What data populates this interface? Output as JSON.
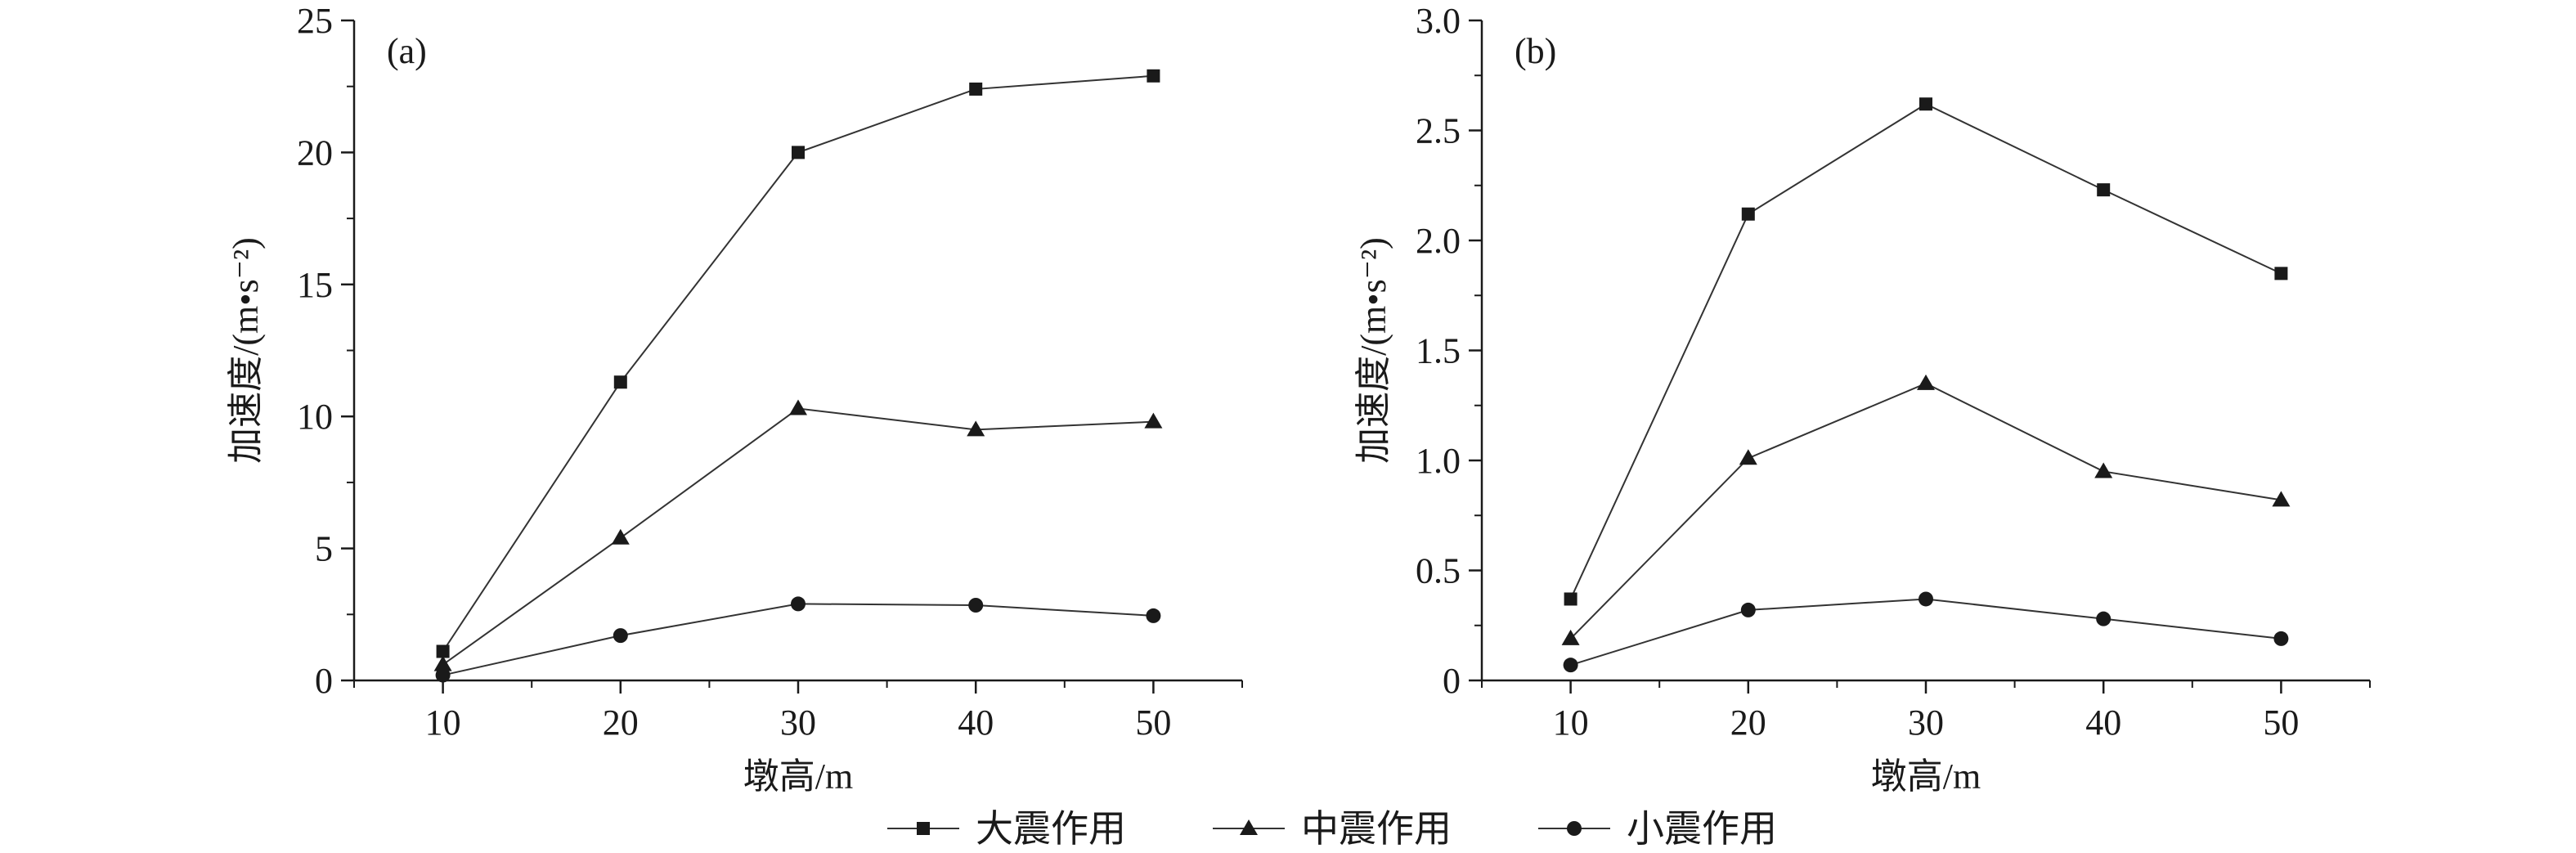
{
  "chart_data": [
    {
      "type": "line",
      "panel_label": "(a)",
      "xlabel": "墩高/m",
      "ylabel": "加速度/(m•s⁻²)",
      "x": [
        10,
        20,
        30,
        40,
        50
      ],
      "xticks": [
        "10",
        "20",
        "30",
        "40",
        "50"
      ],
      "xlim": [
        5,
        55
      ],
      "ylim": [
        0,
        25
      ],
      "yticks": [
        "0",
        "5",
        "10",
        "15",
        "20",
        "25"
      ],
      "grid": false,
      "series": [
        {
          "name": "大震作用",
          "marker": "square",
          "values": [
            1.1,
            11.3,
            20.0,
            22.4,
            22.9
          ]
        },
        {
          "name": "中震作用",
          "marker": "triangle",
          "values": [
            0.6,
            5.4,
            10.3,
            9.5,
            9.8
          ]
        },
        {
          "name": "小震作用",
          "marker": "circle",
          "values": [
            0.2,
            1.7,
            2.9,
            2.85,
            2.45
          ]
        }
      ]
    },
    {
      "type": "line",
      "panel_label": "(b)",
      "xlabel": "墩高/m",
      "ylabel": "加速度/(m•s⁻²)",
      "x": [
        10,
        20,
        30,
        40,
        50
      ],
      "xticks": [
        "10",
        "20",
        "30",
        "40",
        "50"
      ],
      "xlim": [
        5,
        55
      ],
      "ylim": [
        0,
        3.0
      ],
      "yticks": [
        "0",
        "0.5",
        "1.0",
        "1.5",
        "2.0",
        "2.5",
        "3.0"
      ],
      "grid": false,
      "series": [
        {
          "name": "大震作用",
          "marker": "square",
          "values": [
            0.37,
            2.12,
            2.62,
            2.23,
            1.85
          ]
        },
        {
          "name": "中震作用",
          "marker": "triangle",
          "values": [
            0.19,
            1.01,
            1.35,
            0.95,
            0.82
          ]
        },
        {
          "name": "小震作用",
          "marker": "circle",
          "values": [
            0.07,
            0.32,
            0.37,
            0.28,
            0.19
          ]
        }
      ]
    }
  ],
  "legend": {
    "placement": "bottom-center",
    "items": [
      {
        "label": "大震作用",
        "marker": "square"
      },
      {
        "label": "中震作用",
        "marker": "triangle"
      },
      {
        "label": "小震作用",
        "marker": "circle"
      }
    ]
  },
  "colors": {
    "ink": "#1a1a1a",
    "line": "#333333"
  }
}
